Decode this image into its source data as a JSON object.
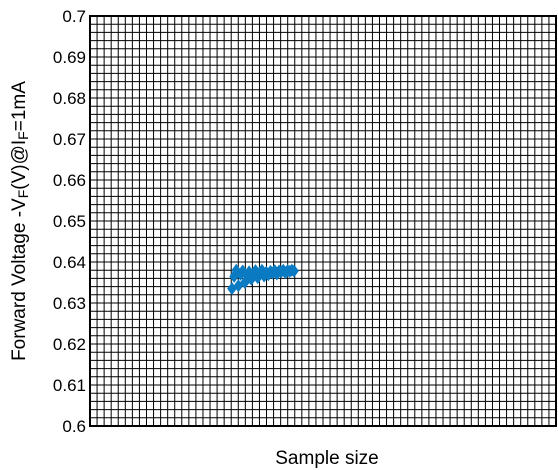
{
  "chart_data": {
    "type": "scatter",
    "title": "",
    "xlabel": "Sample size",
    "ylabel": {
      "prefix": "Forward Voltage -V",
      "sub1": "F",
      "mid": "(V)@I",
      "sub2": "F",
      "suffix": "=1mA"
    },
    "ylim": [
      0.6,
      0.7
    ],
    "yticks": [
      "0.7",
      "0.69",
      "0.68",
      "0.67",
      "0.66",
      "0.65",
      "0.64",
      "0.63",
      "0.62",
      "0.61",
      "0.6"
    ],
    "grid": true,
    "legend": "none",
    "marker_color": "#0a7ac2",
    "series": [
      {
        "values": [
          0.6335,
          0.6365,
          0.638,
          0.6342,
          0.637,
          0.6378,
          0.635,
          0.6368,
          0.6376,
          0.6358,
          0.6372,
          0.6379,
          0.6362,
          0.6374,
          0.638,
          0.6366,
          0.6375,
          0.6369,
          0.6377,
          0.6373,
          0.6379,
          0.6371,
          0.6378,
          0.6376,
          0.638,
          0.6374,
          0.6379,
          0.6377,
          0.638,
          0.6378
        ]
      }
    ]
  }
}
